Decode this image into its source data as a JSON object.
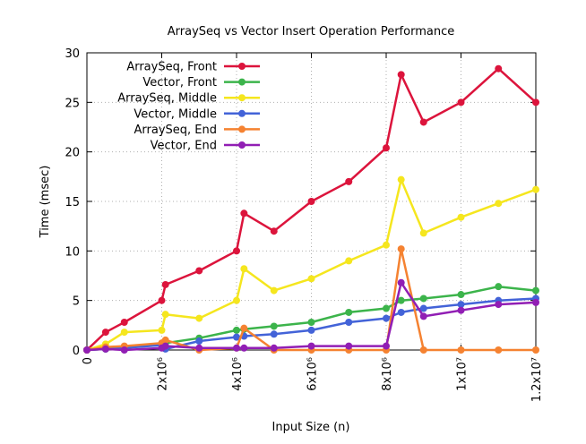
{
  "chart_data": {
    "type": "line",
    "title": "ArraySeq vs Vector Insert Operation Performance",
    "xlabel": "Input Size (n)",
    "ylabel": "Time (msec)",
    "xlim": [
      0,
      12000000
    ],
    "ylim": [
      0,
      30
    ],
    "x_ticks": [
      {
        "value": 0,
        "label": "0"
      },
      {
        "value": 2000000,
        "label": "2x10⁶"
      },
      {
        "value": 4000000,
        "label": "4x10⁶"
      },
      {
        "value": 6000000,
        "label": "6x10⁶"
      },
      {
        "value": 8000000,
        "label": "8x10⁶"
      },
      {
        "value": 10000000,
        "label": "1x10⁷"
      },
      {
        "value": 12000000,
        "label": "1.2x10⁷"
      }
    ],
    "y_ticks": [
      0,
      5,
      10,
      15,
      20,
      25,
      30
    ],
    "grid": true,
    "legend_position": "top-left",
    "series": [
      {
        "name": "ArraySeq, Front",
        "color": "#dc143c",
        "x": [
          0,
          500000,
          1000000,
          2000000,
          2100000,
          3000000,
          4000000,
          4200000,
          5000000,
          6000000,
          7000000,
          8000000,
          8400000,
          9000000,
          10000000,
          11000000,
          12000000
        ],
        "y": [
          0,
          1.8,
          2.8,
          5.0,
          6.6,
          8.0,
          10.0,
          13.8,
          12.0,
          15.0,
          17.0,
          20.4,
          27.8,
          23.0,
          25.0,
          28.4,
          25.0
        ]
      },
      {
        "name": "Vector, Front",
        "color": "#3cb44b",
        "x": [
          0,
          500000,
          1000000,
          2000000,
          2100000,
          3000000,
          4000000,
          4200000,
          5000000,
          6000000,
          7000000,
          8000000,
          8400000,
          9000000,
          10000000,
          11000000,
          12000000
        ],
        "y": [
          0,
          0.1,
          0.2,
          0.6,
          0.7,
          1.2,
          2.0,
          2.1,
          2.4,
          2.8,
          3.8,
          4.2,
          5.0,
          5.2,
          5.6,
          6.4,
          6.0
        ]
      },
      {
        "name": "ArraySeq, Middle",
        "color": "#f5e61e",
        "x": [
          0,
          500000,
          1000000,
          2000000,
          2100000,
          3000000,
          4000000,
          4200000,
          5000000,
          6000000,
          7000000,
          8000000,
          8400000,
          9000000,
          10000000,
          11000000,
          12000000
        ],
        "y": [
          0,
          0.6,
          1.8,
          2.0,
          3.6,
          3.2,
          5.0,
          8.2,
          6.0,
          7.2,
          9.0,
          10.6,
          17.2,
          11.8,
          13.4,
          14.8,
          16.2
        ]
      },
      {
        "name": "Vector, Middle",
        "color": "#4363d8",
        "x": [
          0,
          500000,
          1000000,
          2000000,
          2100000,
          3000000,
          4000000,
          4200000,
          5000000,
          6000000,
          7000000,
          8000000,
          8400000,
          9000000,
          10000000,
          11000000,
          12000000
        ],
        "y": [
          0,
          0.1,
          0.2,
          0.5,
          0.1,
          0.9,
          1.3,
          1.4,
          1.6,
          2.0,
          2.8,
          3.2,
          3.8,
          4.2,
          4.6,
          5.0,
          5.2
        ]
      },
      {
        "name": "ArraySeq, End",
        "color": "#f58231",
        "x": [
          0,
          500000,
          1000000,
          2000000,
          2100000,
          3000000,
          4000000,
          4200000,
          5000000,
          6000000,
          7000000,
          8000000,
          8400000,
          9000000,
          10000000,
          11000000,
          12000000
        ],
        "y": [
          0,
          0.3,
          0.4,
          0.7,
          1.0,
          0.0,
          0.2,
          2.2,
          0.0,
          0.0,
          0.0,
          0.0,
          10.2,
          0.0,
          0.0,
          0.0,
          0.0
        ]
      },
      {
        "name": "Vector, End",
        "color": "#911eb4",
        "x": [
          0,
          500000,
          1000000,
          2000000,
          2100000,
          3000000,
          4000000,
          4200000,
          5000000,
          6000000,
          7000000,
          8000000,
          8400000,
          9000000,
          10000000,
          11000000,
          12000000
        ],
        "y": [
          0,
          0.1,
          0.0,
          0.2,
          0.4,
          0.2,
          0.2,
          0.2,
          0.2,
          0.4,
          0.4,
          0.4,
          6.8,
          3.4,
          4.0,
          4.6,
          4.8
        ]
      }
    ]
  }
}
